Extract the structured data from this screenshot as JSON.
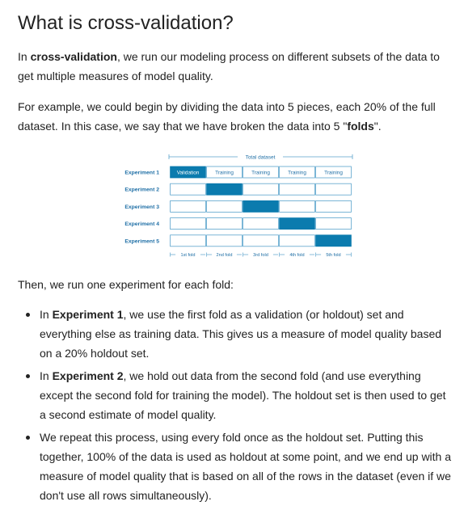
{
  "page_title": "What is cross-validation?",
  "intro": {
    "before": "In ",
    "bold": "cross-validation",
    "after": ", we run our modeling process on different subsets of the data to get multiple measures of model quality."
  },
  "example": {
    "before": "For example, we could begin by dividing the data into 5 pieces, each 20% of the full dataset. In this case, we say that we have broken the data into 5 \"",
    "bold": "folds",
    "after": "\"."
  },
  "figure": {
    "total_label": "Total dataset",
    "validation_label": "Validation",
    "training_label": "Training",
    "experiments": [
      "Experiment 1",
      "Experiment 2",
      "Experiment 3",
      "Experiment 4",
      "Experiment 5"
    ],
    "folds": [
      "1st fold",
      "2nd fold",
      "3rd fold",
      "4th fold",
      "5th fold"
    ],
    "holdout_fold_per_experiment": [
      1,
      2,
      3,
      4,
      5
    ],
    "colors": {
      "accent": "#0b7bae",
      "label": "#1f6fa6",
      "box_border": "#5aa3cc",
      "training_text": "#1f6fa6"
    }
  },
  "then_text": "Then, we run one experiment for each fold:",
  "bullets": [
    {
      "before": "In ",
      "bold": "Experiment 1",
      "after": ", we use the first fold as a validation (or holdout) set and everything else as training data. This gives us a measure of model quality based on a 20% holdout set."
    },
    {
      "before": "In ",
      "bold": "Experiment 2",
      "after": ", we hold out data from the second fold (and use everything except the second fold for training the model). The holdout set is then used to get a second estimate of model quality."
    },
    {
      "before": "",
      "bold": "",
      "after": "We repeat this process, using every fold once as the holdout set. Putting this together, 100% of the data is used as holdout at some point, and we end up with a measure of model quality that is based on all of the rows in the dataset (even if we don't use all rows simultaneously)."
    }
  ]
}
